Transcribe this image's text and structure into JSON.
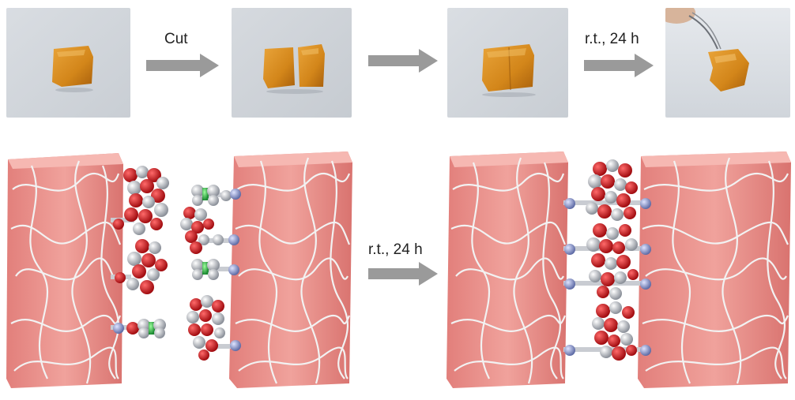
{
  "steps": {
    "cut_label": "Cut",
    "heal_label_top": "r.t., 24 h",
    "heal_label_bottom": "r.t., 24 h"
  },
  "colors": {
    "gel": "#d98a1a",
    "hydrogel_block": "#e88f8a",
    "network": "#f2f2f2",
    "oxygen": "#c8151b",
    "carbon": "#b4b8bf",
    "nitrogen": "#8f9bc6",
    "linker": "#2db24a",
    "arrow": "#9a9a9a"
  }
}
